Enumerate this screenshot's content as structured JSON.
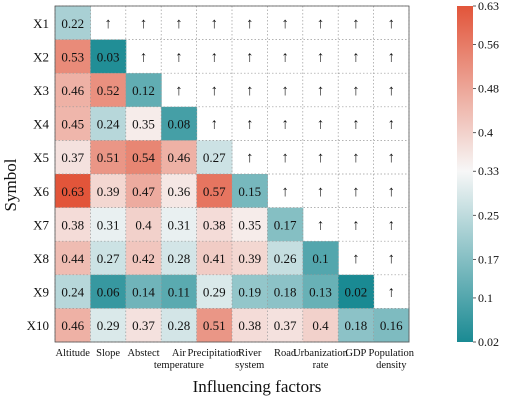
{
  "chart_data": {
    "type": "heatmap",
    "xlabel": "Influencing factors",
    "ylabel": "Symbol",
    "rows": [
      "X1",
      "X2",
      "X3",
      "X4",
      "X5",
      "X6",
      "X7",
      "X8",
      "X9",
      "X10"
    ],
    "columns": [
      "Altitude",
      "Slope",
      "Abstect",
      "Air temperature",
      "Precipitation",
      "River system",
      "Road",
      "Urbanization rate",
      "GDP",
      "Population density"
    ],
    "values": [
      [
        0.22,
        null,
        null,
        null,
        null,
        null,
        null,
        null,
        null,
        null
      ],
      [
        0.53,
        0.03,
        null,
        null,
        null,
        null,
        null,
        null,
        null,
        null
      ],
      [
        0.46,
        0.52,
        0.12,
        null,
        null,
        null,
        null,
        null,
        null,
        null
      ],
      [
        0.45,
        0.24,
        0.35,
        0.08,
        null,
        null,
        null,
        null,
        null,
        null
      ],
      [
        0.37,
        0.51,
        0.54,
        0.46,
        0.27,
        null,
        null,
        null,
        null,
        null
      ],
      [
        0.63,
        0.39,
        0.47,
        0.36,
        0.57,
        0.15,
        null,
        null,
        null,
        null
      ],
      [
        0.38,
        0.31,
        0.4,
        0.31,
        0.38,
        0.35,
        0.17,
        null,
        null,
        null
      ],
      [
        0.44,
        0.27,
        0.42,
        0.28,
        0.41,
        0.39,
        0.26,
        0.1,
        null,
        null
      ],
      [
        0.24,
        0.06,
        0.14,
        0.11,
        0.29,
        0.19,
        0.18,
        0.13,
        0.02,
        null
      ],
      [
        0.46,
        0.29,
        0.37,
        0.28,
        0.51,
        0.38,
        0.37,
        0.4,
        0.18,
        0.16
      ]
    ],
    "value_labels": [
      [
        "0.22",
        "↑",
        "↑",
        "↑",
        "↑",
        "↑",
        "↑",
        "↑",
        "↑",
        "↑"
      ],
      [
        "0.53",
        "0.03",
        "↑",
        "↑",
        "↑",
        "↑",
        "↑",
        "↑",
        "↑",
        "↑"
      ],
      [
        "0.46",
        "0.52",
        "0.12",
        "↑",
        "↑",
        "↑",
        "↑",
        "↑",
        "↑",
        "↑"
      ],
      [
        "0.45",
        "0.24",
        "0.35",
        "0.08",
        "↑",
        "↑",
        "↑",
        "↑",
        "↑",
        "↑"
      ],
      [
        "0.37",
        "0.51",
        "0.54",
        "0.46",
        "0.27",
        "↑",
        "↑",
        "↑",
        "↑",
        "↑"
      ],
      [
        "0.63",
        "0.39",
        "0.47",
        "0.36",
        "0.57",
        "0.15",
        "↑",
        "↑",
        "↑",
        "↑"
      ],
      [
        "0.38",
        "0.31",
        "0.4",
        "0.31",
        "0.38",
        "0.35",
        "0.17",
        "↑",
        "↑",
        "↑"
      ],
      [
        "0.44",
        "0.27",
        "0.42",
        "0.28",
        "0.41",
        "0.39",
        "0.26",
        "0.1",
        "↑",
        "↑"
      ],
      [
        "0.24",
        "0.06",
        "0.14",
        "0.11",
        "0.29",
        "0.19",
        "0.18",
        "0.13",
        "0.02",
        "↑"
      ],
      [
        "0.46",
        "0.29",
        "0.37",
        "0.28",
        "0.51",
        "0.38",
        "0.37",
        "0.4",
        "0.18",
        "0.16"
      ]
    ],
    "colorbar": {
      "min": 0.02,
      "max": 0.63,
      "ticks": [
        "0.63",
        "0.56",
        "0.48",
        "0.4",
        "0.33",
        "0.25",
        "0.17",
        "0.1",
        "0.02"
      ],
      "low_color": "#1a8a93",
      "mid_color": "#f7f7f7",
      "high_color": "#e2553a",
      "mid_value": 0.33
    },
    "upper_marker": "↑",
    "grid": true
  }
}
